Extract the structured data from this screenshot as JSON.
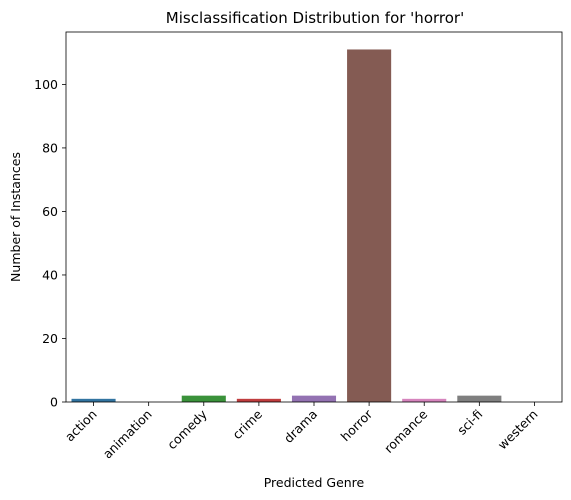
{
  "chart_data": {
    "type": "bar",
    "title": "Misclassification Distribution for 'horror'",
    "xlabel": "Predicted Genre",
    "ylabel": "Number of Instances",
    "categories": [
      "action",
      "animation",
      "comedy",
      "crime",
      "drama",
      "horror",
      "romance",
      "sci-fi",
      "western"
    ],
    "values": [
      1,
      0,
      2,
      1,
      2,
      111,
      1,
      2,
      0
    ],
    "ylim": [
      0,
      116.5
    ],
    "yticks": [
      0,
      20,
      40,
      60,
      80,
      100
    ],
    "grid": false,
    "legend": "none",
    "colors": [
      "#3274a1",
      "#e1812c",
      "#3a923a",
      "#c03d3e",
      "#9372b2",
      "#845b53",
      "#d684bd",
      "#7f7f7f",
      "#a9aa35"
    ]
  }
}
